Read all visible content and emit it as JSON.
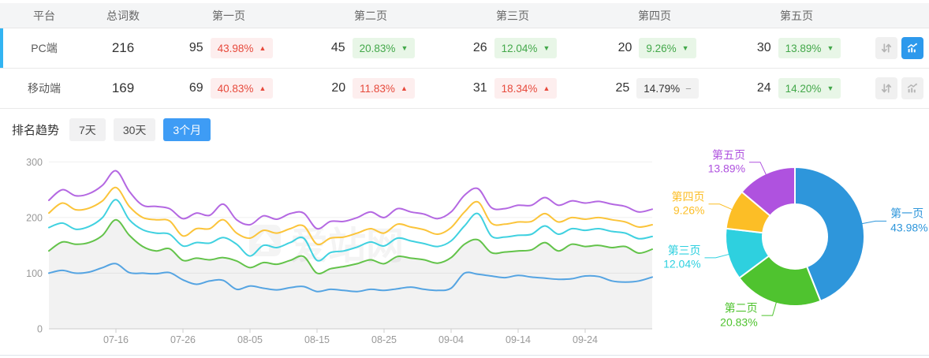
{
  "accent": {
    "selected_bar": "#32b4f2",
    "active_button": "#2d99ec",
    "active_tab": "#3e9cf5"
  },
  "table": {
    "columns": [
      "平台",
      "总词数",
      "第一页",
      "第二页",
      "第三页",
      "第四页",
      "第五页"
    ],
    "rows": [
      {
        "platform": "PC端",
        "total": "216",
        "selected": true,
        "chart_active": true,
        "pages": [
          {
            "count": "95",
            "pct": "43.98%",
            "dir": "up",
            "tone": "red"
          },
          {
            "count": "45",
            "pct": "20.83%",
            "dir": "down",
            "tone": "green"
          },
          {
            "count": "26",
            "pct": "12.04%",
            "dir": "down",
            "tone": "green"
          },
          {
            "count": "20",
            "pct": "9.26%",
            "dir": "down",
            "tone": "green"
          },
          {
            "count": "30",
            "pct": "13.89%",
            "dir": "down",
            "tone": "green"
          }
        ]
      },
      {
        "platform": "移动端",
        "total": "169",
        "selected": false,
        "chart_active": false,
        "pages": [
          {
            "count": "69",
            "pct": "40.83%",
            "dir": "up",
            "tone": "red"
          },
          {
            "count": "20",
            "pct": "11.83%",
            "dir": "up",
            "tone": "red"
          },
          {
            "count": "31",
            "pct": "18.34%",
            "dir": "up",
            "tone": "red"
          },
          {
            "count": "25",
            "pct": "14.79%",
            "dir": "flat",
            "tone": "gray"
          },
          {
            "count": "24",
            "pct": "14.20%",
            "dir": "down",
            "tone": "green"
          }
        ]
      }
    ]
  },
  "trend": {
    "title": "排名趋势",
    "tabs": [
      {
        "label": "7天",
        "active": false
      },
      {
        "label": "30天",
        "active": false
      },
      {
        "label": "3个月",
        "active": true
      }
    ]
  },
  "chart_data": [
    {
      "type": "line",
      "title": "排名趋势 3个月",
      "watermark": "爱站网",
      "x_axis": {
        "tick_labels": [
          "07-16",
          "07-26",
          "08-05",
          "08-15",
          "08-25",
          "09-04",
          "09-14",
          "09-24"
        ],
        "tick_days": [
          10,
          20,
          30,
          40,
          50,
          60,
          70,
          80
        ],
        "total_days": 90,
        "point_step_days": 2
      },
      "y_axis": {
        "ticks": [
          0,
          100,
          200,
          300
        ],
        "max": 300,
        "grid": true
      },
      "series": [
        {
          "name": "第一页",
          "color": "#55a4e2",
          "area": false,
          "values": [
            100,
            105,
            100,
            102,
            110,
            117,
            101,
            100,
            99,
            101,
            88,
            80,
            86,
            87,
            71,
            77,
            73,
            70,
            74,
            76,
            67,
            71,
            69,
            67,
            71,
            69,
            72,
            75,
            71,
            69,
            73,
            100,
            98,
            95,
            92,
            96,
            93,
            91,
            89,
            90,
            95,
            94,
            86,
            84,
            86,
            93
          ]
        },
        {
          "name": "第二页",
          "color": "#63c34a",
          "area": true,
          "values": [
            140,
            156,
            152,
            155,
            168,
            196,
            168,
            148,
            140,
            144,
            123,
            127,
            124,
            128,
            122,
            110,
            119,
            116,
            123,
            130,
            100,
            108,
            112,
            117,
            124,
            117,
            130,
            127,
            124,
            118,
            128,
            152,
            160,
            137,
            138,
            140,
            142,
            155,
            140,
            152,
            148,
            150,
            146,
            148,
            136,
            143
          ]
        },
        {
          "name": "第三页",
          "color": "#40d1e0",
          "area": false,
          "values": [
            182,
            190,
            179,
            184,
            200,
            232,
            196,
            178,
            172,
            170,
            149,
            155,
            154,
            164,
            152,
            131,
            150,
            146,
            155,
            163,
            123,
            137,
            140,
            147,
            156,
            149,
            163,
            158,
            153,
            148,
            158,
            185,
            207,
            167,
            165,
            168,
            170,
            185,
            170,
            180,
            177,
            180,
            175,
            172,
            162,
            166
          ]
        },
        {
          "name": "第四页",
          "color": "#fbc43a",
          "area": false,
          "values": [
            208,
            226,
            214,
            217,
            230,
            254,
            220,
            200,
            196,
            194,
            167,
            180,
            180,
            196,
            172,
            163,
            177,
            172,
            180,
            185,
            152,
            163,
            165,
            172,
            180,
            172,
            188,
            183,
            178,
            170,
            182,
            210,
            228,
            190,
            188,
            192,
            193,
            207,
            192,
            200,
            197,
            200,
            196,
            192,
            183,
            187
          ]
        },
        {
          "name": "第五页",
          "color": "#b468e2",
          "area": false,
          "values": [
            231,
            250,
            239,
            243,
            258,
            284,
            247,
            222,
            220,
            216,
            198,
            208,
            204,
            224,
            196,
            187,
            203,
            197,
            207,
            208,
            180,
            193,
            193,
            200,
            210,
            200,
            216,
            210,
            206,
            198,
            210,
            240,
            252,
            218,
            216,
            222,
            222,
            236,
            222,
            230,
            226,
            229,
            224,
            220,
            210,
            215
          ]
        }
      ]
    },
    {
      "type": "pie",
      "donut": true,
      "slices": [
        {
          "label": "第一页",
          "pct": 43.98,
          "pct_label": "43.98%",
          "color": "#2e96db"
        },
        {
          "label": "第二页",
          "pct": 20.83,
          "pct_label": "20.83%",
          "color": "#4fc32f"
        },
        {
          "label": "第三页",
          "pct": 12.04,
          "pct_label": "12.04%",
          "color": "#2ed0df"
        },
        {
          "label": "第四页",
          "pct": 9.26,
          "pct_label": "9.26%",
          "color": "#fcbe26"
        },
        {
          "label": "第五页",
          "pct": 13.89,
          "pct_label": "13.89%",
          "color": "#af52df"
        }
      ]
    }
  ]
}
